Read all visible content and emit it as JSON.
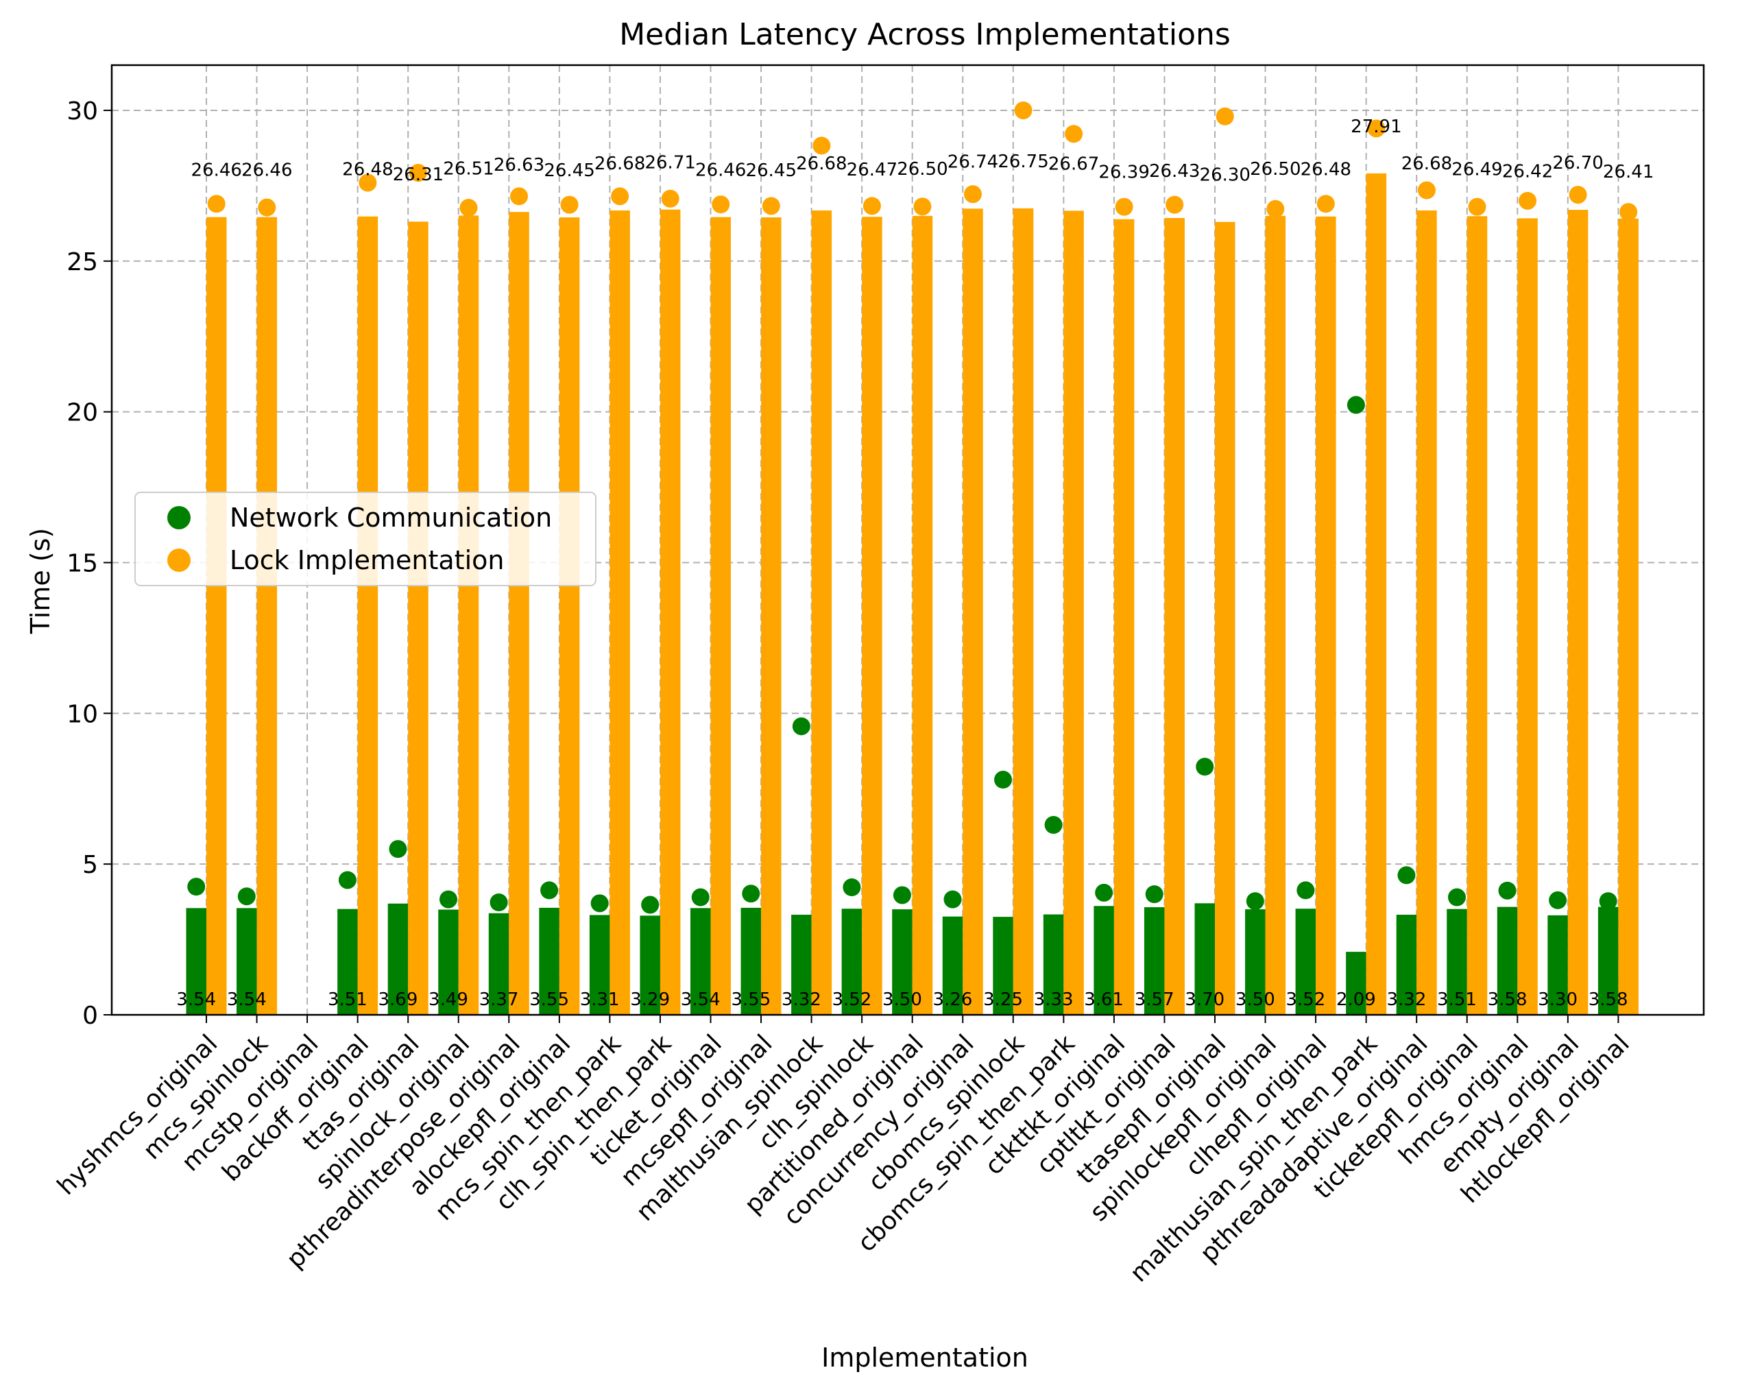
{
  "chart_data": {
    "type": "bar",
    "title": "Median Latency Across Implementations",
    "xlabel": "Implementation",
    "ylabel": "Time (s)",
    "ylim": [
      0,
      31.5
    ],
    "yticks": [
      0,
      5,
      10,
      15,
      20,
      25,
      30
    ],
    "grid": true,
    "legend_position": "center-left",
    "categories": [
      "hyshmcs_original",
      "mcs_spinlock",
      "mcstp_original",
      "backoff_original",
      "ttas_original",
      "spinlock_original",
      "pthreadinterpose_original",
      "alockepfl_original",
      "mcs_spin_then_park",
      "clh_spin_then_park",
      "ticket_original",
      "mcsepfl_original",
      "malthusian_spinlock",
      "clh_spinlock",
      "partitioned_original",
      "concurrency_original",
      "cbomcs_spinlock",
      "cbomcs_spin_then_park",
      "ctkttkt_original",
      "cptltkt_original",
      "ttasepfl_original",
      "spinlockepfl_original",
      "clhepfl_original",
      "malthusian_spin_then_park",
      "pthreadadaptive_original",
      "ticketepfl_original",
      "hmcs_original",
      "empty_original",
      "htlockepfl_original"
    ],
    "series": [
      {
        "name": "Network Communication",
        "color": "#008000",
        "values": [
          3.54,
          3.54,
          null,
          3.51,
          3.69,
          3.49,
          3.37,
          3.55,
          3.31,
          3.29,
          3.54,
          3.55,
          3.32,
          3.52,
          3.5,
          3.26,
          3.25,
          3.33,
          3.61,
          3.57,
          3.7,
          3.5,
          3.52,
          2.09,
          3.32,
          3.51,
          3.58,
          3.3,
          3.58
        ],
        "value_labels": [
          "3.54",
          "3.54",
          "",
          "3.51",
          "3.69",
          "3.49",
          "3.37",
          "3.55",
          "3.31",
          "3.29",
          "3.54",
          "3.55",
          "3.32",
          "3.52",
          "3.50",
          "3.26",
          "3.25",
          "3.33",
          "3.61",
          "3.57",
          "3.70",
          "3.50",
          "3.52",
          "2.09",
          "3.32",
          "3.51",
          "3.58",
          "3.30",
          "3.58"
        ],
        "points": [
          4.25,
          3.93,
          null,
          4.47,
          5.5,
          3.83,
          3.73,
          4.13,
          3.7,
          3.65,
          3.9,
          4.02,
          9.57,
          4.23,
          3.97,
          3.83,
          7.8,
          6.3,
          4.05,
          4.0,
          8.23,
          3.77,
          4.13,
          20.23,
          4.63,
          3.9,
          4.12,
          3.8,
          3.77
        ]
      },
      {
        "name": "Lock Implementation",
        "color": "#FFA500",
        "values": [
          26.46,
          26.46,
          null,
          26.48,
          26.31,
          26.51,
          26.63,
          26.45,
          26.68,
          26.71,
          26.46,
          26.45,
          26.68,
          26.47,
          26.5,
          26.74,
          26.75,
          26.67,
          26.39,
          26.43,
          26.3,
          26.5,
          26.48,
          27.91,
          26.68,
          26.49,
          26.42,
          26.7,
          26.41
        ],
        "value_labels": [
          "26.46",
          "26.46",
          "",
          "26.48",
          "26.31",
          "26.51",
          "26.63",
          "26.45",
          "26.68",
          "26.71",
          "26.46",
          "26.45",
          "26.68",
          "26.47",
          "26.50",
          "26.74",
          "26.75",
          "26.67",
          "26.39",
          "26.43",
          "26.30",
          "26.50",
          "26.48",
          "27.91",
          "26.68",
          "26.49",
          "26.42",
          "26.70",
          "26.41"
        ],
        "points": [
          26.9,
          26.78,
          null,
          27.6,
          27.93,
          26.77,
          27.15,
          26.87,
          27.15,
          27.07,
          26.88,
          26.83,
          28.83,
          26.83,
          26.81,
          27.22,
          30.0,
          29.22,
          26.8,
          26.87,
          29.8,
          26.73,
          26.9,
          29.4,
          27.35,
          26.8,
          27.0,
          27.2,
          26.63
        ]
      }
    ]
  }
}
